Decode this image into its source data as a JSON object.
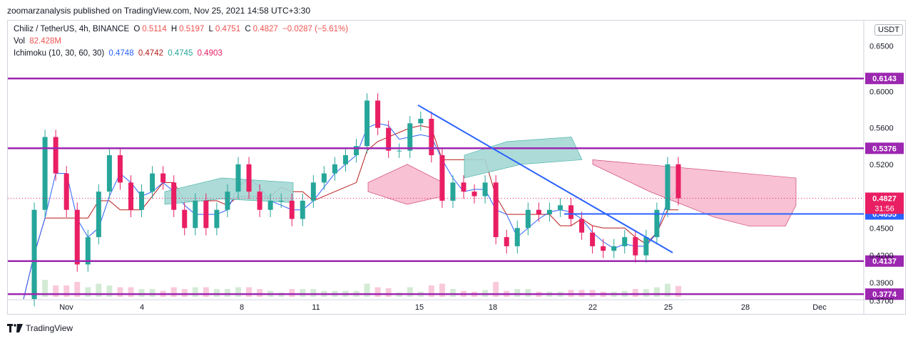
{
  "publisher": "zoomarzanalysis published on TradingView.com, Nov 25, 2021 14:58 UTC+3:30",
  "legend": {
    "symbol": "Chiliz / TetherUS, 4h, BINANCE",
    "open_label": "O",
    "open": "0.5114",
    "high_label": "H",
    "high": "0.5197",
    "low_label": "L",
    "low": "0.4751",
    "close_label": "C",
    "close": "0.4827",
    "change": "−0.0287 (−5.61%)",
    "vol_label": "Vol",
    "vol": "82.428M",
    "ichimoku_label": "Ichimoku (10, 30, 60, 30)",
    "ichimoku_values": [
      "0.4748",
      "0.4742",
      "0.4745",
      "0.4903"
    ]
  },
  "currency_button": "USDT",
  "footer": {
    "brand": "TradingView",
    "logo_icon": "tradingview-logo-icon"
  },
  "colors": {
    "bull": "#26a69a",
    "bear": "#e91e63",
    "level": "#9c27b0",
    "trendline": "#2962ff",
    "conversion": "#2962ff",
    "base": "#b71c1c",
    "cloud_bull": "#a5d8d4",
    "cloud_bear": "#f8bbd0",
    "tenkan": "#2962ff",
    "kijun": "#b71c1c"
  },
  "chart_data": {
    "type": "candlestick",
    "ylim": [
      0.365,
      0.67
    ],
    "yaxis_ticks": [
      "0.6500",
      "0.6000",
      "0.5600",
      "0.5200",
      "0.4500",
      "0.4200",
      "0.3900",
      "0.3700"
    ],
    "xaxis_ticks": [
      "Nov",
      "4",
      "8",
      "11",
      "15",
      "18",
      "22",
      "25",
      "28",
      "Dec"
    ],
    "horizontal_levels": [
      {
        "label": "0.6143",
        "value": 0.6143
      },
      {
        "label": "0.5376",
        "value": 0.5376
      },
      {
        "label": "0.4137",
        "value": 0.4137
      },
      {
        "label": "0.3774",
        "value": 0.3774
      }
    ],
    "support_line": {
      "label": "0.4655",
      "value": 0.4655
    },
    "last_price": {
      "label": "0.4827",
      "value": 0.4827,
      "countdown": "31:56"
    },
    "trendline": {
      "from": {
        "date": "Nov 15",
        "price": 0.585
      },
      "to": {
        "date": "Nov 24",
        "price": 0.423
      }
    },
    "price_path": [
      0.372,
      0.47,
      0.55,
      0.51,
      0.47,
      0.41,
      0.44,
      0.49,
      0.53,
      0.5,
      0.47,
      0.49,
      0.51,
      0.5,
      0.47,
      0.45,
      0.48,
      0.45,
      0.47,
      0.49,
      0.52,
      0.49,
      0.47,
      0.48,
      0.48,
      0.46,
      0.48,
      0.5,
      0.51,
      0.52,
      0.53,
      0.54,
      0.59,
      0.56,
      0.535,
      0.535,
      0.565,
      0.57,
      0.53,
      0.48,
      0.5,
      0.49,
      0.485,
      0.5,
      0.44,
      0.43,
      0.45,
      0.47,
      0.465,
      0.47,
      0.475,
      0.46,
      0.445,
      0.43,
      0.425,
      0.43,
      0.44,
      0.42,
      0.44,
      0.47,
      0.52,
      0.4827
    ],
    "volume_note": "Vol 82.428M"
  }
}
